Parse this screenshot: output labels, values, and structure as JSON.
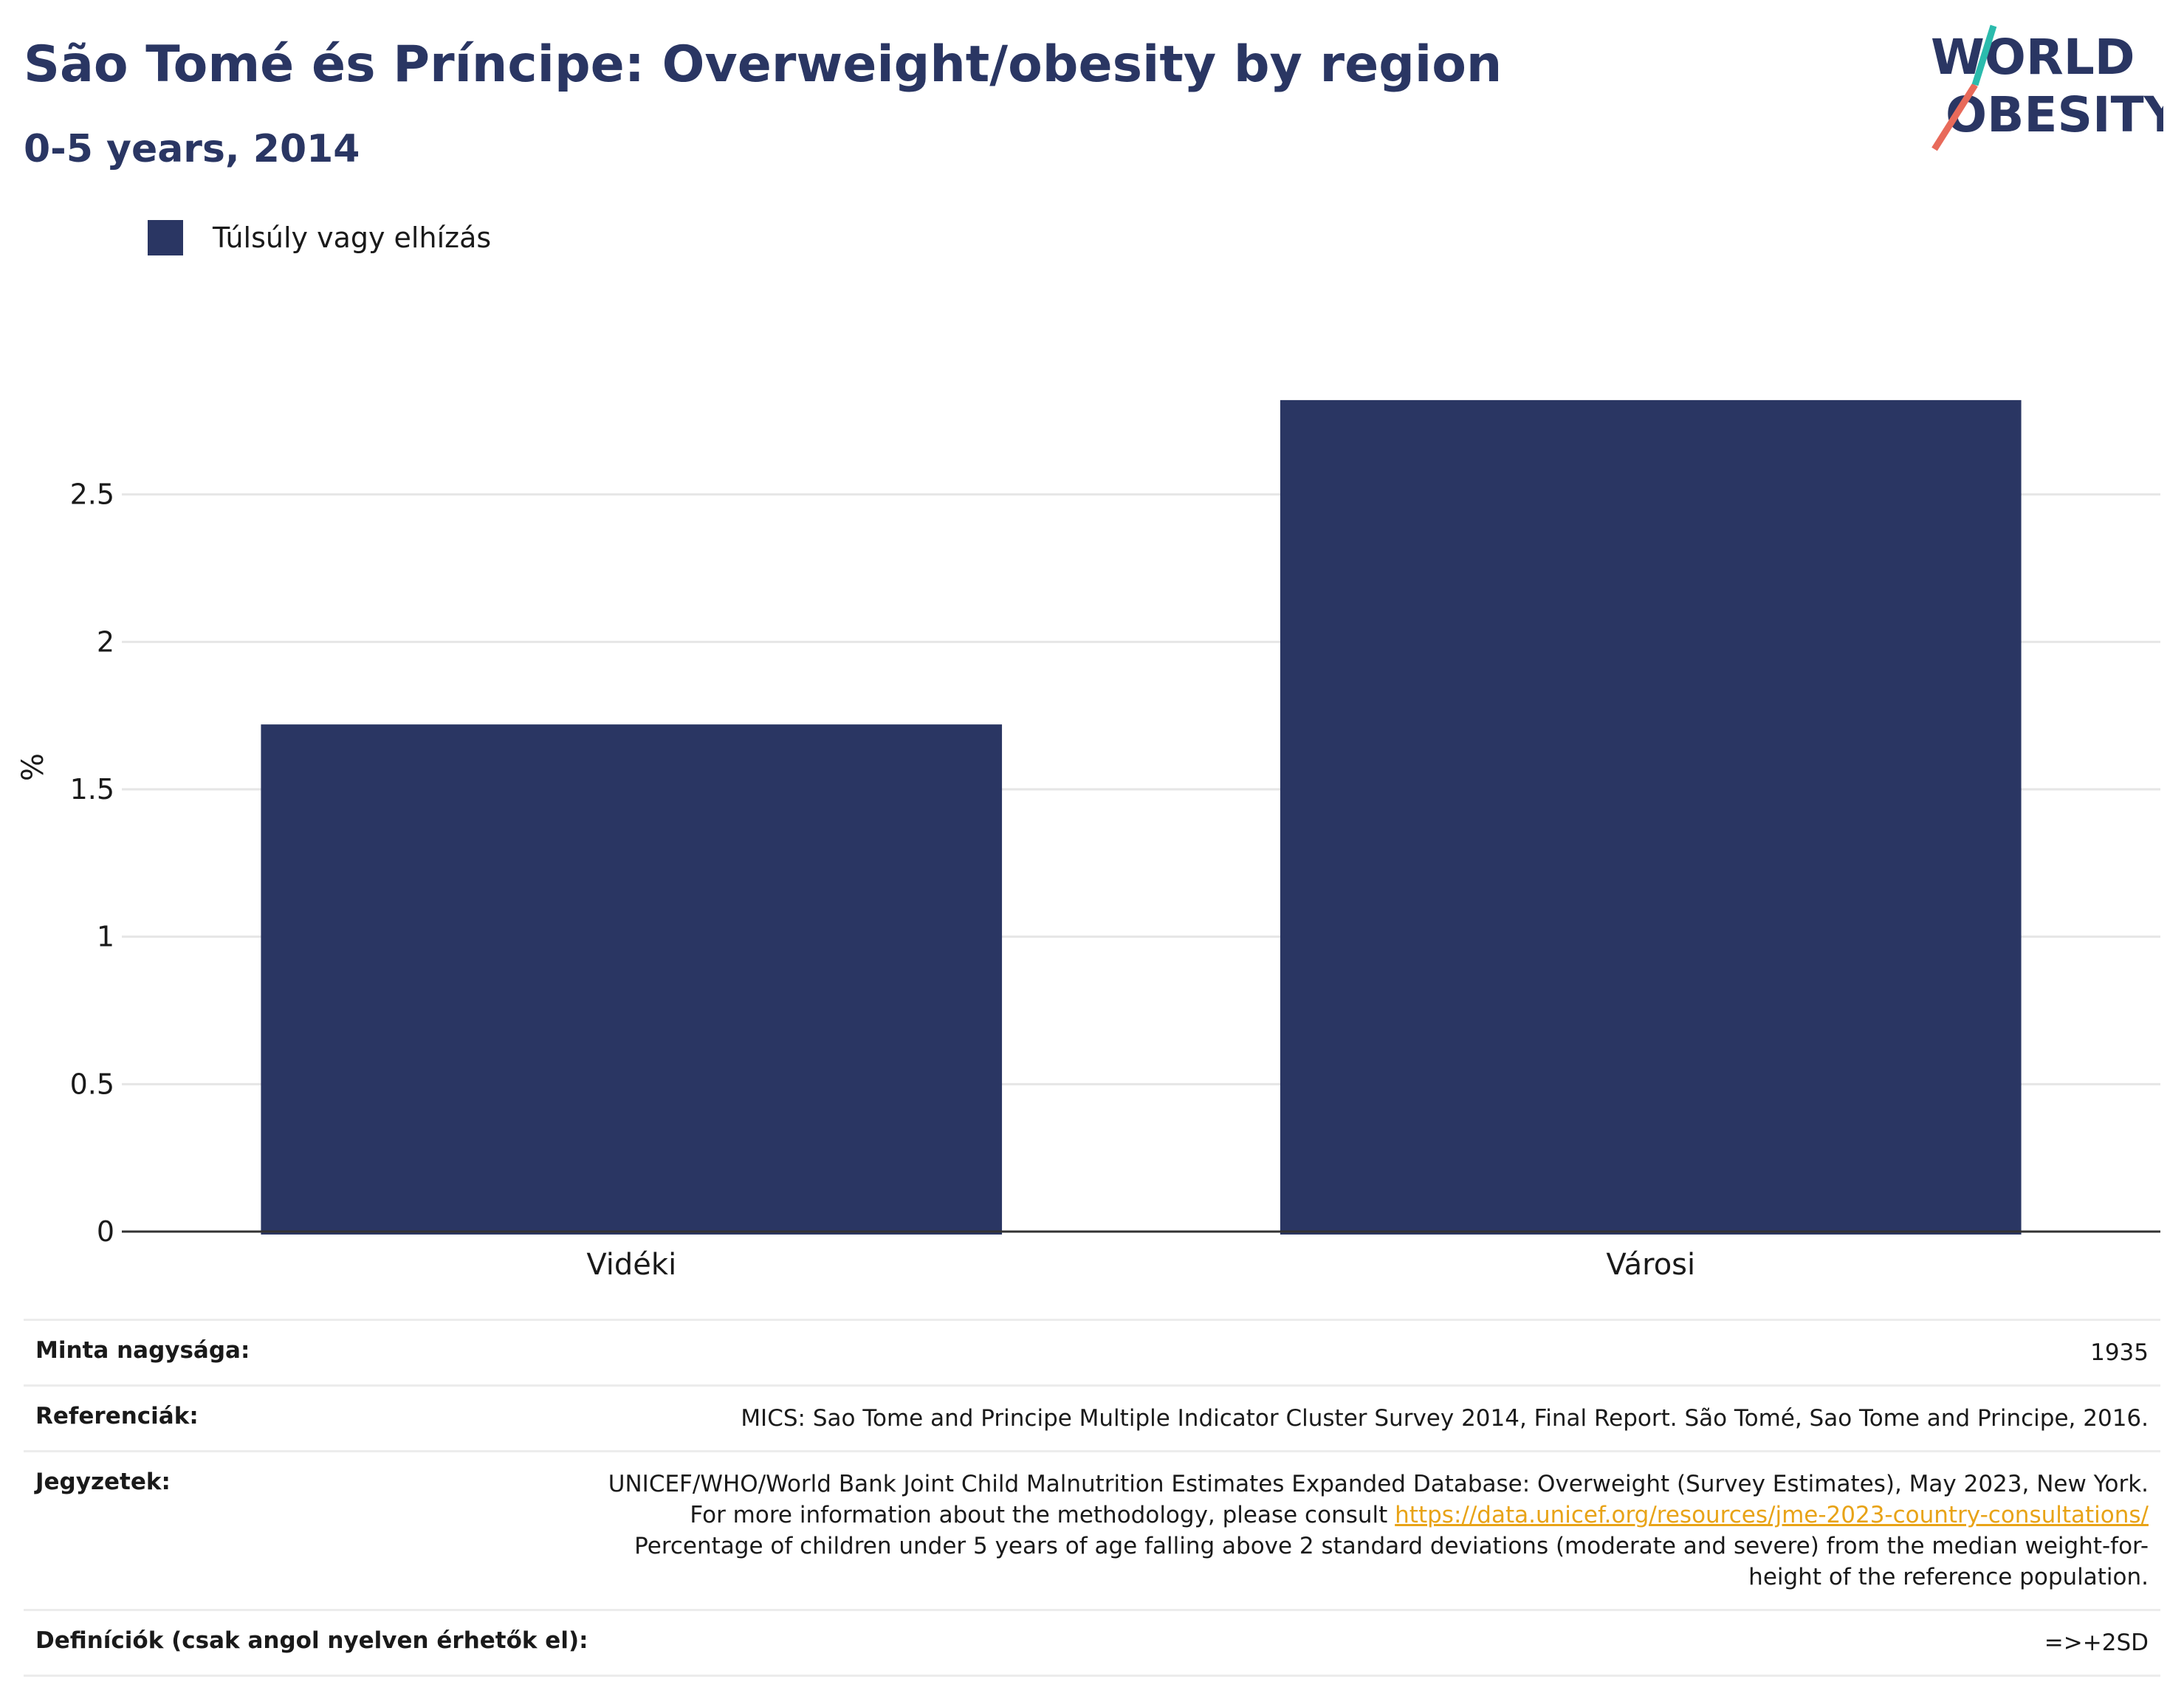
{
  "header": {
    "title": "São Tomé és Príncipe: Overweight/obesity by region",
    "subtitle": "0-5 years, 2014"
  },
  "logo": {
    "line1": "WORLD",
    "line2": "OBESITY",
    "colors": {
      "navy": "#2a3663",
      "teal": "#2bbbad",
      "coral": "#e86a5a"
    }
  },
  "legend": {
    "label": "Túlsúly vagy elhízás",
    "color": "#2a3663"
  },
  "chart_data": {
    "type": "bar",
    "categories": [
      "Vidéki",
      "Városi"
    ],
    "series": [
      {
        "name": "Túlsúly vagy elhízás",
        "values": [
          1.72,
          2.82
        ],
        "color": "#2a3663"
      }
    ],
    "title": "São Tomé és Príncipe: Overweight/obesity by region",
    "subtitle": "0-5 years, 2014",
    "xlabel": "",
    "ylabel": "%",
    "ylim": [
      0,
      3.0
    ],
    "yticks": [
      0,
      0.5,
      1,
      1.5,
      2,
      2.5
    ],
    "ytick_labels": [
      "0",
      "0.5",
      "1",
      "1.5",
      "2",
      "2.5"
    ],
    "grid": true,
    "legend_position": "top-left"
  },
  "info": {
    "sample_label": "Minta nagysága:",
    "sample_value": "1935",
    "ref_label": "Referenciák:",
    "ref_value": "MICS: Sao Tome and Principe Multiple Indicator Cluster Survey 2014, Final Report. São Tomé, Sao Tome and Principe, 2016.",
    "notes_label": "Jegyzetek:",
    "notes_text1": "UNICEF/WHO/World Bank Joint Child Malnutrition Estimates Expanded Database: Overweight (Survey Estimates), May 2023, New York. For more information about the methodology, please consult",
    "notes_link": "https://data.unicef.org/resources/jme-2023-country-consultations/",
    "notes_text2": "Percentage of children under 5 years of age falling above 2 standard deviations (moderate and severe) from the median weight-for-height of the reference population.",
    "def_label": "Definíciók (csak angol nyelven érhetők el):",
    "def_value": "=>+2SD"
  }
}
